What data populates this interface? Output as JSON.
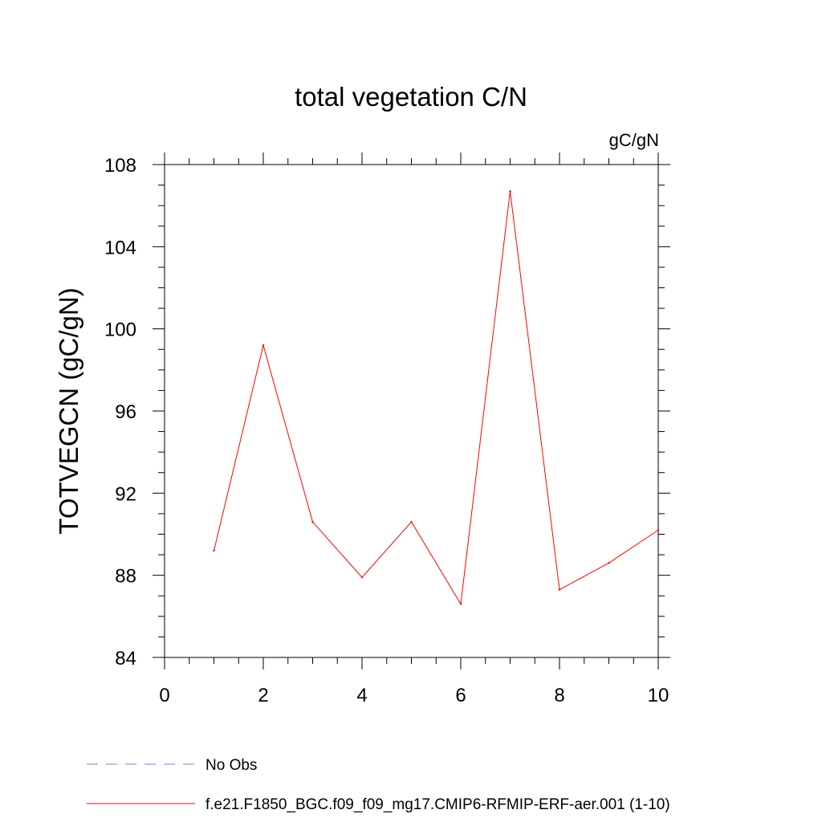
{
  "chart_data": {
    "type": "line",
    "title": "total vegetation C/N",
    "units": "gC/gN",
    "xlabel": "",
    "ylabel": "TOTVEGCN  (gC/gN)",
    "xlim": [
      0,
      10
    ],
    "ylim": [
      84,
      108
    ],
    "x_ticks": [
      0,
      2,
      4,
      6,
      8,
      10
    ],
    "x_tick_labels": [
      "0",
      "2",
      "4",
      "6",
      "8",
      "10"
    ],
    "y_ticks": [
      84,
      88,
      92,
      96,
      100,
      104,
      108
    ],
    "y_tick_labels": [
      "84",
      "88",
      "92",
      "96",
      "100",
      "104",
      "108"
    ],
    "grid": false,
    "legend_position": "bottom-left",
    "series": [
      {
        "name": "No Obs",
        "color": "#7f7fbf",
        "style": "dashed",
        "x": [],
        "y": []
      },
      {
        "name": "f.e21.F1850_BGC.f09_f09_mg17.CMIP6-RFMIP-ERF-aer.001 (1-10)",
        "color": "#ff0000",
        "style": "solid",
        "x": [
          1,
          2,
          3,
          4,
          5,
          6,
          7,
          8,
          9,
          10
        ],
        "y": [
          89.2,
          99.2,
          90.6,
          87.9,
          90.6,
          86.6,
          106.7,
          87.3,
          88.6,
          90.2
        ]
      }
    ]
  }
}
